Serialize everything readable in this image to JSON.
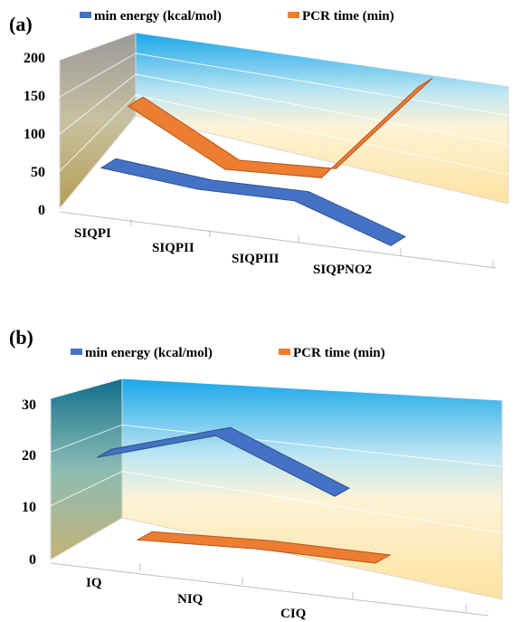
{
  "chart_data": [
    {
      "panel_label": "(a)",
      "type": "line",
      "three_d": true,
      "categories": [
        "SIQPI",
        "SIQPII",
        "SIQPIII",
        "SIQPNO2"
      ],
      "y_ticks": [
        "0",
        "50",
        "100",
        "150",
        "200"
      ],
      "ylim": [
        0,
        200
      ],
      "grid": true,
      "legend_position": "top",
      "series": [
        {
          "name": "min energy (kcal/mol)",
          "color": "#4472C4",
          "values": [
            72,
            60,
            61,
            18
          ]
        },
        {
          "name": "PCR time (min)",
          "color": "#ED7D31",
          "values": [
            122,
            55,
            60,
            195
          ]
        }
      ]
    },
    {
      "panel_label": "(b)",
      "type": "line",
      "three_d": true,
      "categories": [
        "IQ",
        "NIQ",
        "CIQ"
      ],
      "y_ticks": [
        "0",
        "10",
        "20",
        "30"
      ],
      "ylim": [
        0,
        30
      ],
      "grid": true,
      "legend_position": "top",
      "series": [
        {
          "name": "min energy (kcal/mol)",
          "color": "#4472C4",
          "values": [
            22.5,
            29.5,
            20.5
          ]
        },
        {
          "name": "PCR time (min)",
          "color": "#ED7D31",
          "values": [
            7.5,
            8.5,
            8.5
          ]
        }
      ]
    }
  ]
}
